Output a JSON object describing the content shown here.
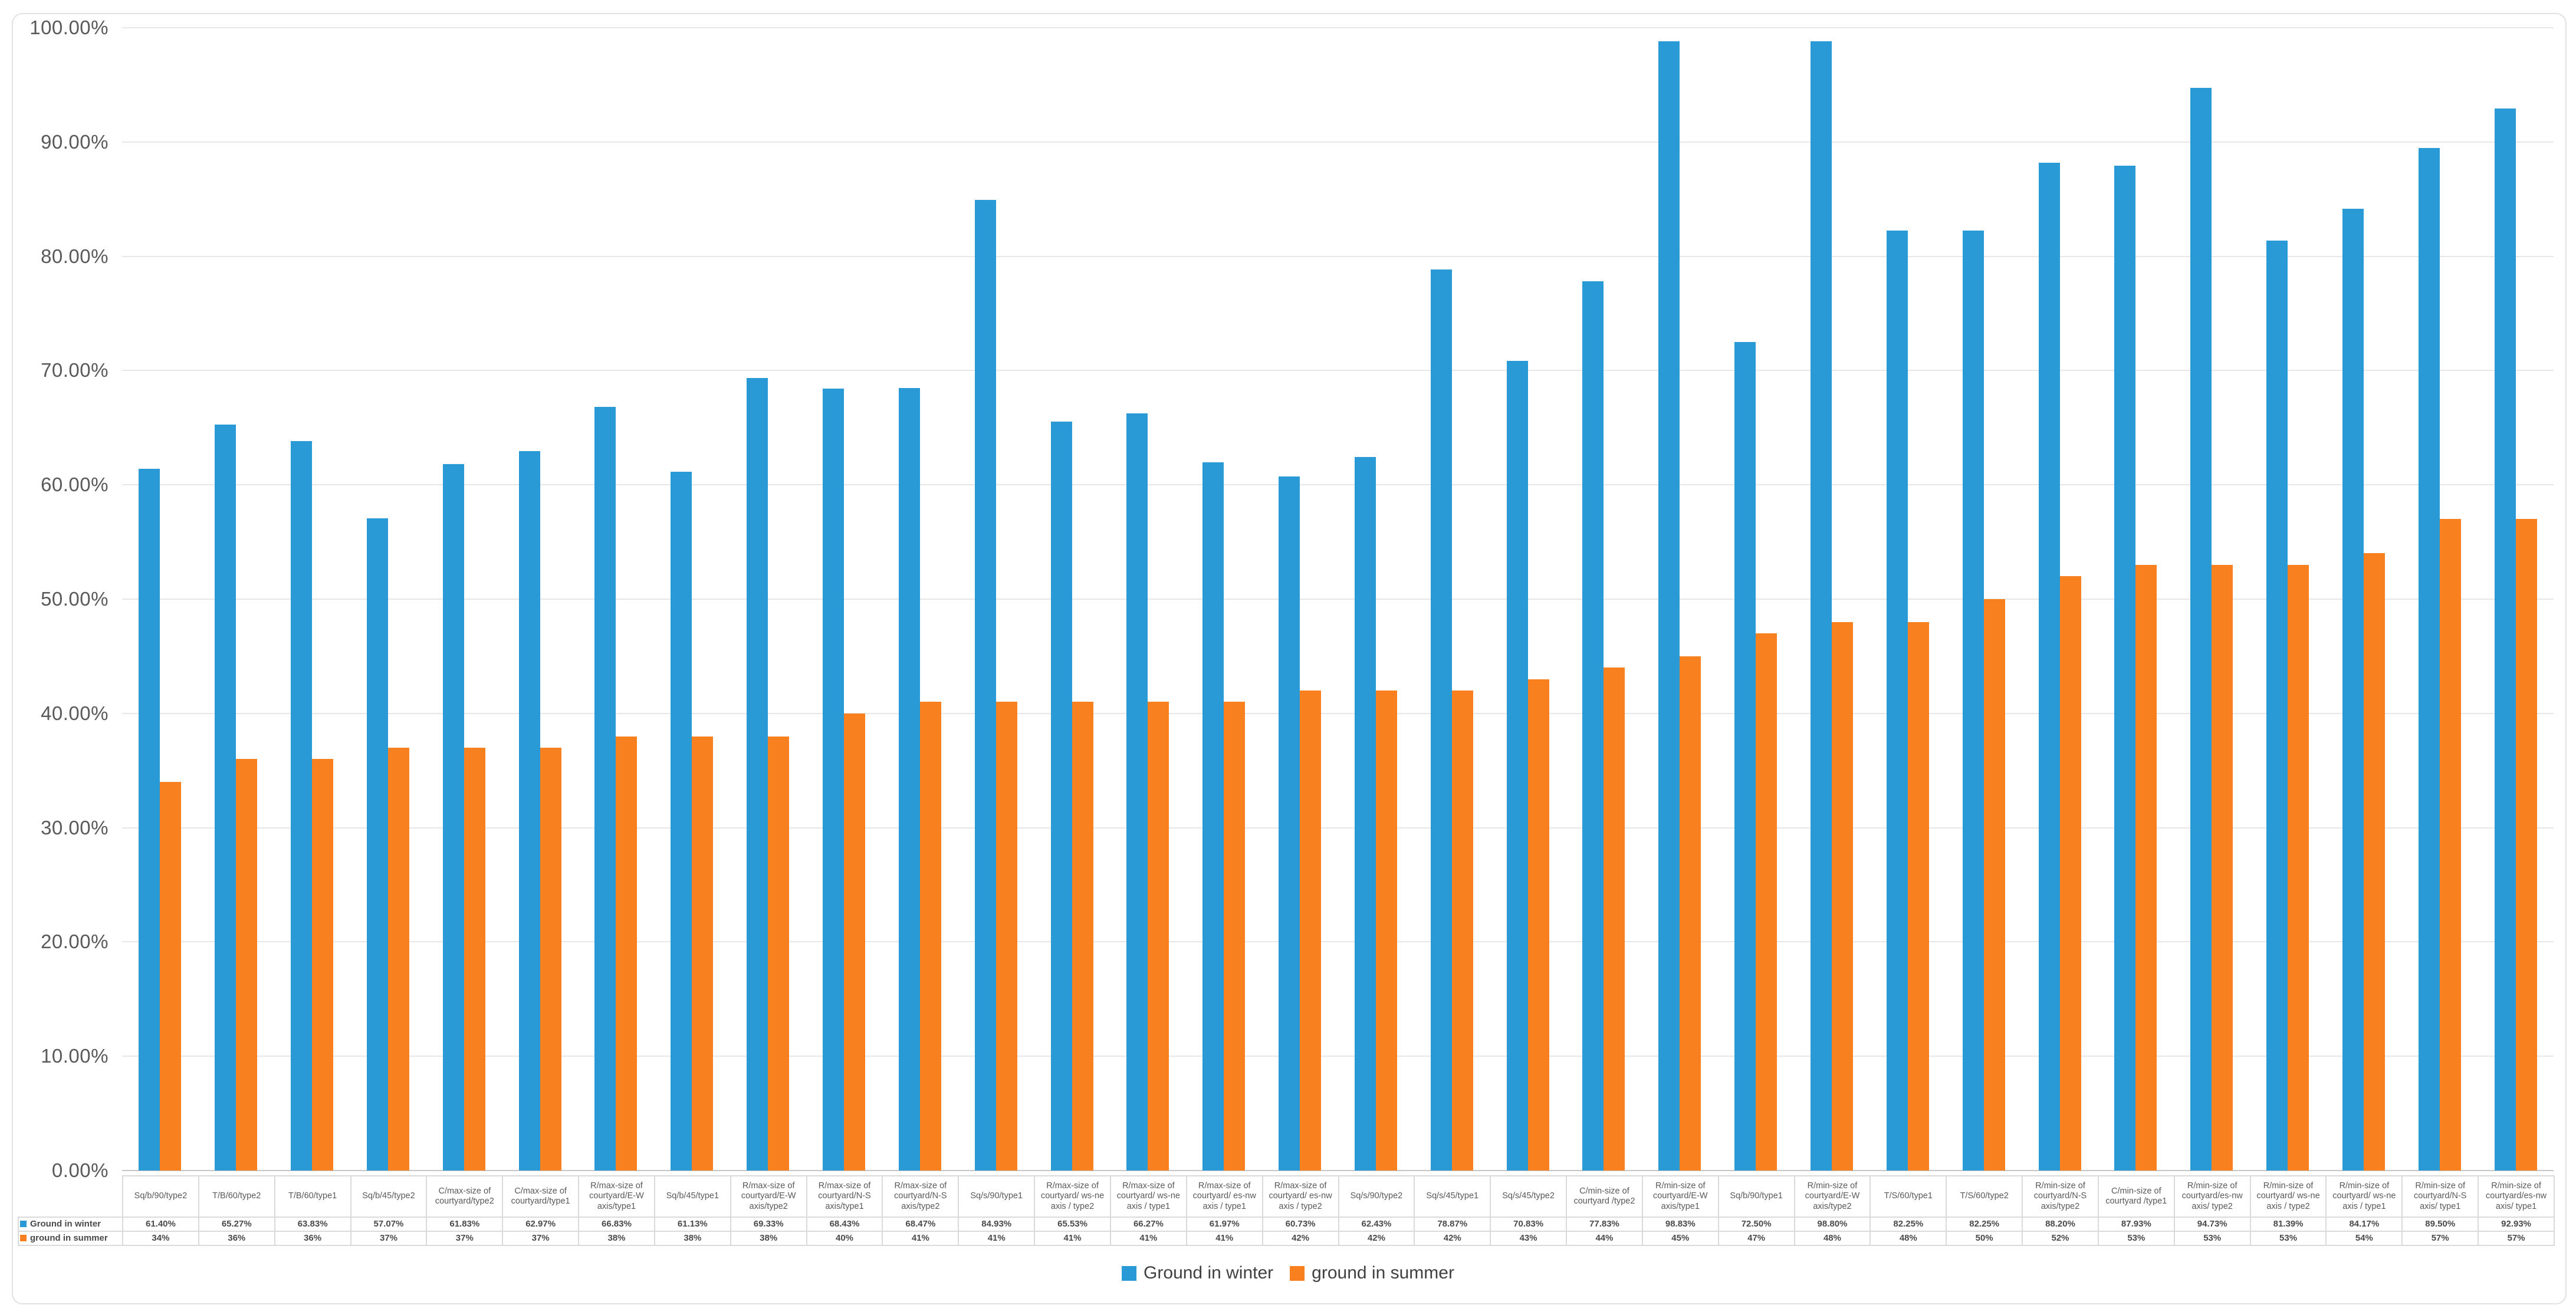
{
  "colors": {
    "winter_blue": "#2a9ad7",
    "summer_orange": "#f8801f",
    "gridline": "#e7e7e7",
    "axis_line": "#c6c6c6",
    "table_border": "#dadada",
    "axis_text": "#595959"
  },
  "y_axis": {
    "ticks": [
      "100.00%",
      "90.00%",
      "80.00%",
      "70.00%",
      "60.00%",
      "50.00%",
      "40.00%",
      "30.00%",
      "20.00%",
      "10.00%",
      "0.00%"
    ]
  },
  "legend": {
    "winter_label": "Ground in winter",
    "summer_label": "ground in summer"
  },
  "chart_data": {
    "type": "bar",
    "title": "",
    "xlabel": "",
    "ylabel": "",
    "ylim": [
      0,
      100
    ],
    "y_tick_step": 10,
    "grid": true,
    "legend_position": "bottom",
    "data_table_shown": true,
    "categories": [
      "Sq/b/90/type2",
      "T/B/60/type2",
      "T/B/60/type1",
      "Sq/b/45/type2",
      "C/max-size of courtyard/type2",
      "C/max-size of courtyard/type1",
      "R/max-size of courtyard/E-W axis/type1",
      "Sq/b/45/type1",
      "R/max-size of courtyard/E-W axis/type2",
      "R/max-size of courtyard/N-S axis/type1",
      "R/max-size of courtyard/N-S axis/type2",
      "Sq/s/90/type1",
      "R/max-size of courtyard/ ws-ne axis / type2",
      "R/max-size of courtyard/ ws-ne axis / type1",
      "R/max-size of courtyard/ es-nw axis / type1",
      "R/max-size of courtyard/ es-nw axis / type2",
      "Sq/s/90/type2",
      "Sq/s/45/type1",
      "Sq/s/45/type2",
      "C/min-size of courtyard /type2",
      "R/min-size of courtyard/E-W axis/type1",
      "Sq/b/90/type1",
      "R/min-size of courtyard/E-W axis/type2",
      "T/S/60/type1",
      "T/S/60/type2",
      "R/min-size of courtyard/N-S axis/type2",
      "C/min-size of courtyard /type1",
      "R/min-size of courtyard/es-nw axis/ type2",
      "R/min-size of courtyard/ ws-ne axis / type2",
      "R/min-size of courtyard/ ws-ne axis / type1",
      "R/min-size of courtyard/N-S axis/ type1",
      "R/min-size of courtyard/es-nw axis/ type1"
    ],
    "series": [
      {
        "name": "Ground in winter",
        "color": "#2a9ad7",
        "values": [
          61.4,
          65.27,
          63.83,
          57.07,
          61.83,
          62.97,
          66.83,
          61.13,
          69.33,
          68.43,
          68.47,
          84.93,
          65.53,
          66.27,
          61.97,
          60.73,
          62.43,
          78.87,
          70.83,
          77.83,
          98.83,
          72.5,
          98.8,
          82.25,
          82.25,
          88.2,
          87.93,
          94.73,
          81.39,
          84.17,
          89.5,
          92.93
        ],
        "labels": [
          "61.40%",
          "65.27%",
          "63.83%",
          "57.07%",
          "61.83%",
          "62.97%",
          "66.83%",
          "61.13%",
          "69.33%",
          "68.43%",
          "68.47%",
          "84.93%",
          "65.53%",
          "66.27%",
          "61.97%",
          "60.73%",
          "62.43%",
          "78.87%",
          "70.83%",
          "77.83%",
          "98.83%",
          "72.50%",
          "98.80%",
          "82.25%",
          "82.25%",
          "88.20%",
          "87.93%",
          "94.73%",
          "81.39%",
          "84.17%",
          "89.50%",
          "92.93%"
        ]
      },
      {
        "name": "ground in summer",
        "color": "#f8801f",
        "values": [
          34,
          36,
          36,
          37,
          37,
          37,
          38,
          38,
          38,
          40,
          41,
          41,
          41,
          41,
          41,
          42,
          42,
          42,
          43,
          44,
          45,
          47,
          48,
          48,
          50,
          52,
          53,
          53,
          53,
          54,
          57,
          57
        ],
        "labels": [
          "34%",
          "36%",
          "36%",
          "37%",
          "37%",
          "37%",
          "38%",
          "38%",
          "38%",
          "40%",
          "41%",
          "41%",
          "41%",
          "41%",
          "41%",
          "42%",
          "42%",
          "42%",
          "43%",
          "44%",
          "45%",
          "47%",
          "48%",
          "48%",
          "50%",
          "52%",
          "53%",
          "53%",
          "53%",
          "54%",
          "57%",
          "57%"
        ]
      }
    ]
  }
}
